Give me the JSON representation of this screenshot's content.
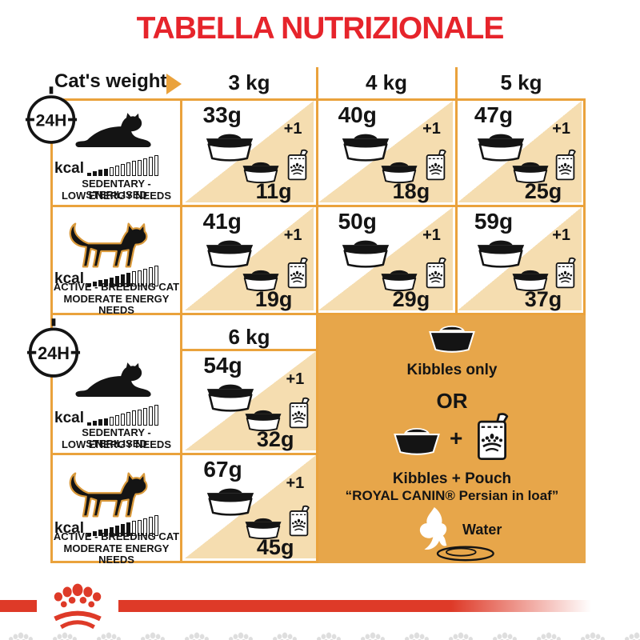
{
  "title": "TABELLA NUTRIZIONALE",
  "header": {
    "weight_label": "Cat's weight",
    "columns": [
      "3 kg",
      "4 kg",
      "5 kg"
    ],
    "column_6kg": "6 kg"
  },
  "clock_badge": "24H",
  "profiles": {
    "sedentary": {
      "kcal": "kcal",
      "line1": "SEDENTARY - STERILISED",
      "line2": "LOW ENERGY NEEDS",
      "bars_filled": 4,
      "bars_total": 13
    },
    "active": {
      "kcal": "kcal",
      "line1": "ACTIVE - BREEDING CAT",
      "line2": "MODERATE ENERGY NEEDS",
      "bars_filled": 8,
      "bars_total": 13
    }
  },
  "cells": {
    "s3": {
      "kibbles": "33g",
      "plus": "+1",
      "mix": "11g"
    },
    "s4": {
      "kibbles": "40g",
      "plus": "+1",
      "mix": "18g"
    },
    "s5": {
      "kibbles": "47g",
      "plus": "+1",
      "mix": "25g"
    },
    "s6": {
      "kibbles": "54g",
      "plus": "+1",
      "mix": "32g"
    },
    "a3": {
      "kibbles": "41g",
      "plus": "+1",
      "mix": "19g"
    },
    "a4": {
      "kibbles": "50g",
      "plus": "+1",
      "mix": "29g"
    },
    "a5": {
      "kibbles": "59g",
      "plus": "+1",
      "mix": "37g"
    },
    "a6": {
      "kibbles": "67g",
      "plus": "+1",
      "mix": "45g"
    }
  },
  "legend": {
    "kibbles_only": "Kibbles only",
    "or": "OR",
    "plus_sign": "+",
    "kibbles_pouch": "Kibbles + Pouch",
    "pouch_name": "“ROYAL CANIN® Persian in loaf”",
    "water": "Water"
  },
  "colors": {
    "title_red": "#E6242B",
    "border_orange": "#EAA23C",
    "cell_beige": "#F5DDB0",
    "panel_gold": "#E7A64A",
    "stripe_red": "#DE3A28"
  },
  "chart_data": {
    "type": "table",
    "title": "TABELLA NUTRIZIONALE",
    "columns_cat_weight": [
      "3 kg",
      "4 kg",
      "5 kg",
      "6 kg"
    ],
    "period": "24H",
    "rows": [
      {
        "name": "SEDENTARY - STERILISED / LOW ENERGY NEEDS",
        "kibbles_only_g": [
          33,
          40,
          47,
          54
        ],
        "kibbles_plus_1_pouch_g": [
          11,
          18,
          25,
          32
        ]
      },
      {
        "name": "ACTIVE - BREEDING CAT / MODERATE ENERGY NEEDS",
        "kibbles_only_g": [
          41,
          50,
          59,
          67
        ],
        "kibbles_plus_1_pouch_g": [
          19,
          29,
          37,
          45
        ]
      }
    ],
    "notes": "Kibbles only OR Kibbles + Pouch “ROYAL CANIN® Persian in loaf”; fresh water"
  }
}
